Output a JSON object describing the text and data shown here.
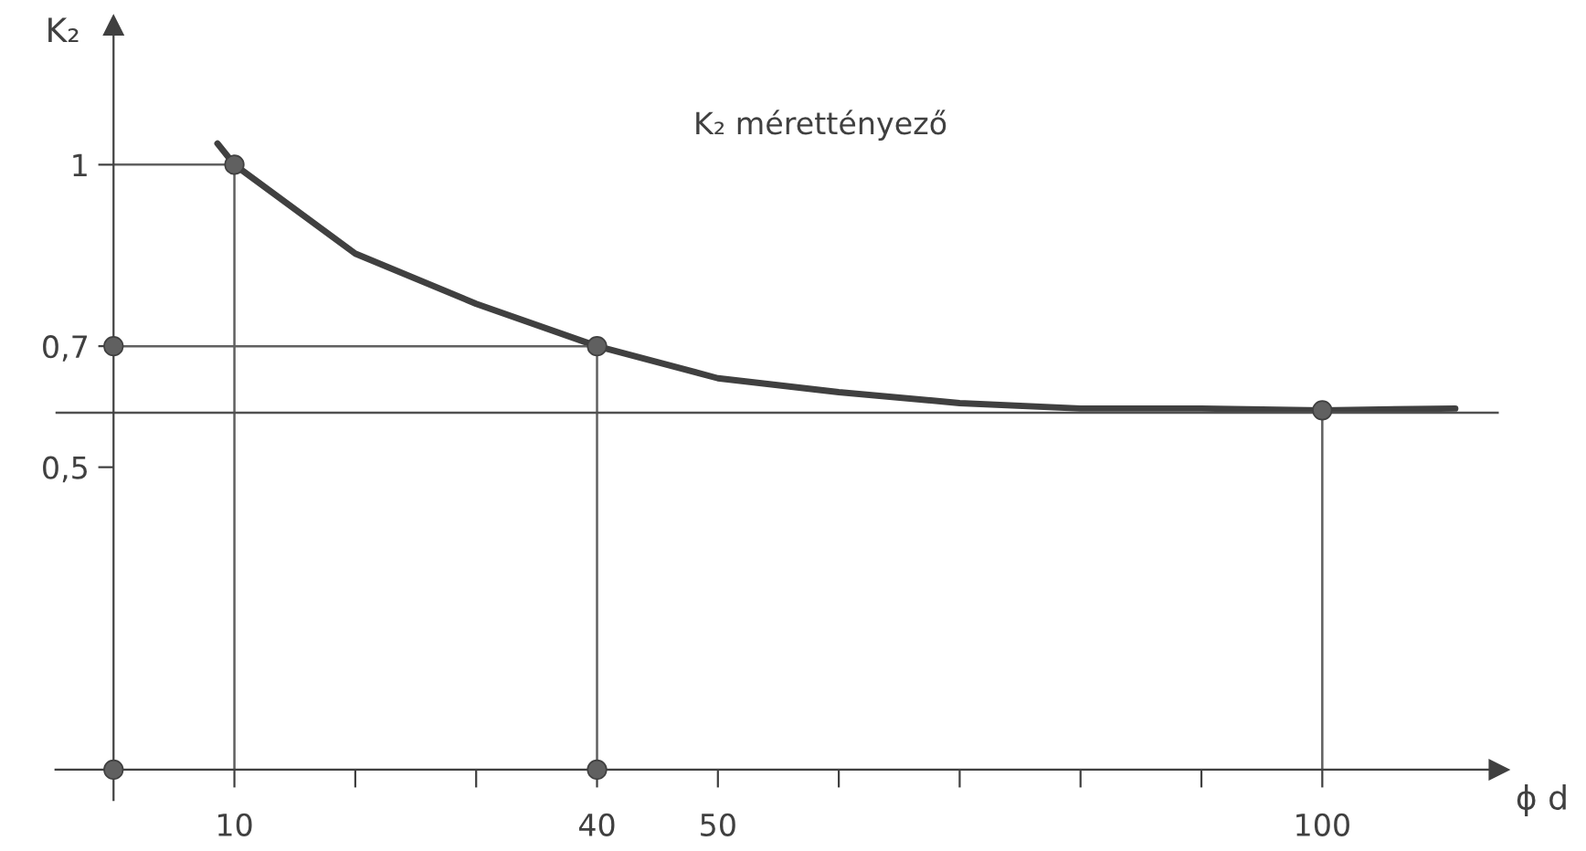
{
  "chart_data": {
    "type": "line",
    "title": "K₂ mérettényező",
    "xlabel": "ϕ d",
    "ylabel": "K₂",
    "xlim": [
      -4.8,
      114.6
    ],
    "ylim": [
      -0.05,
      1.23
    ],
    "xticks": [
      10,
      {
        "value": 20,
        "label": null
      },
      {
        "value": 30,
        "label": null
      },
      40,
      50,
      {
        "value": 60,
        "label": null
      },
      {
        "value": 70,
        "label": null
      },
      {
        "value": 80,
        "label": null
      },
      {
        "value": 90,
        "label": null
      },
      100
    ],
    "yticks": [
      {
        "value": 0.5,
        "label": "0,5"
      },
      {
        "value": 0.7,
        "label": "0,7"
      },
      1
    ],
    "ref_lines": [
      {
        "axis": "y",
        "value": 0.59,
        "color": "#505050"
      }
    ],
    "series": [
      {
        "color": "#404040",
        "x": [
          8.6,
          10,
          20,
          30,
          40,
          50,
          60,
          70,
          80,
          90,
          100,
          111
        ],
        "values": [
          1.035,
          1.0,
          0.853,
          0.77,
          0.7,
          0.647,
          0.624,
          0.606,
          0.597,
          0.597,
          0.594,
          0.597
        ]
      },
      {
        "type": "line",
        "color": "#606060",
        "x": [
          0,
          10,
          10
        ],
        "values": [
          1,
          1,
          0
        ]
      },
      {
        "type": "line",
        "color": "#606060",
        "x": [
          40,
          40,
          0
        ],
        "values": [
          0,
          0.7,
          0.7
        ]
      },
      {
        "type": "line",
        "color": "#606060",
        "x": [
          100,
          100
        ],
        "values": [
          0.594,
          0
        ]
      },
      {
        "type": "scatter",
        "color": "#606060",
        "x": [
          0,
          10,
          40,
          100,
          0,
          40
        ],
        "values": [
          0.7,
          1,
          0.7,
          0.594,
          0,
          0
        ]
      }
    ],
    "legend": false,
    "grid": false
  }
}
